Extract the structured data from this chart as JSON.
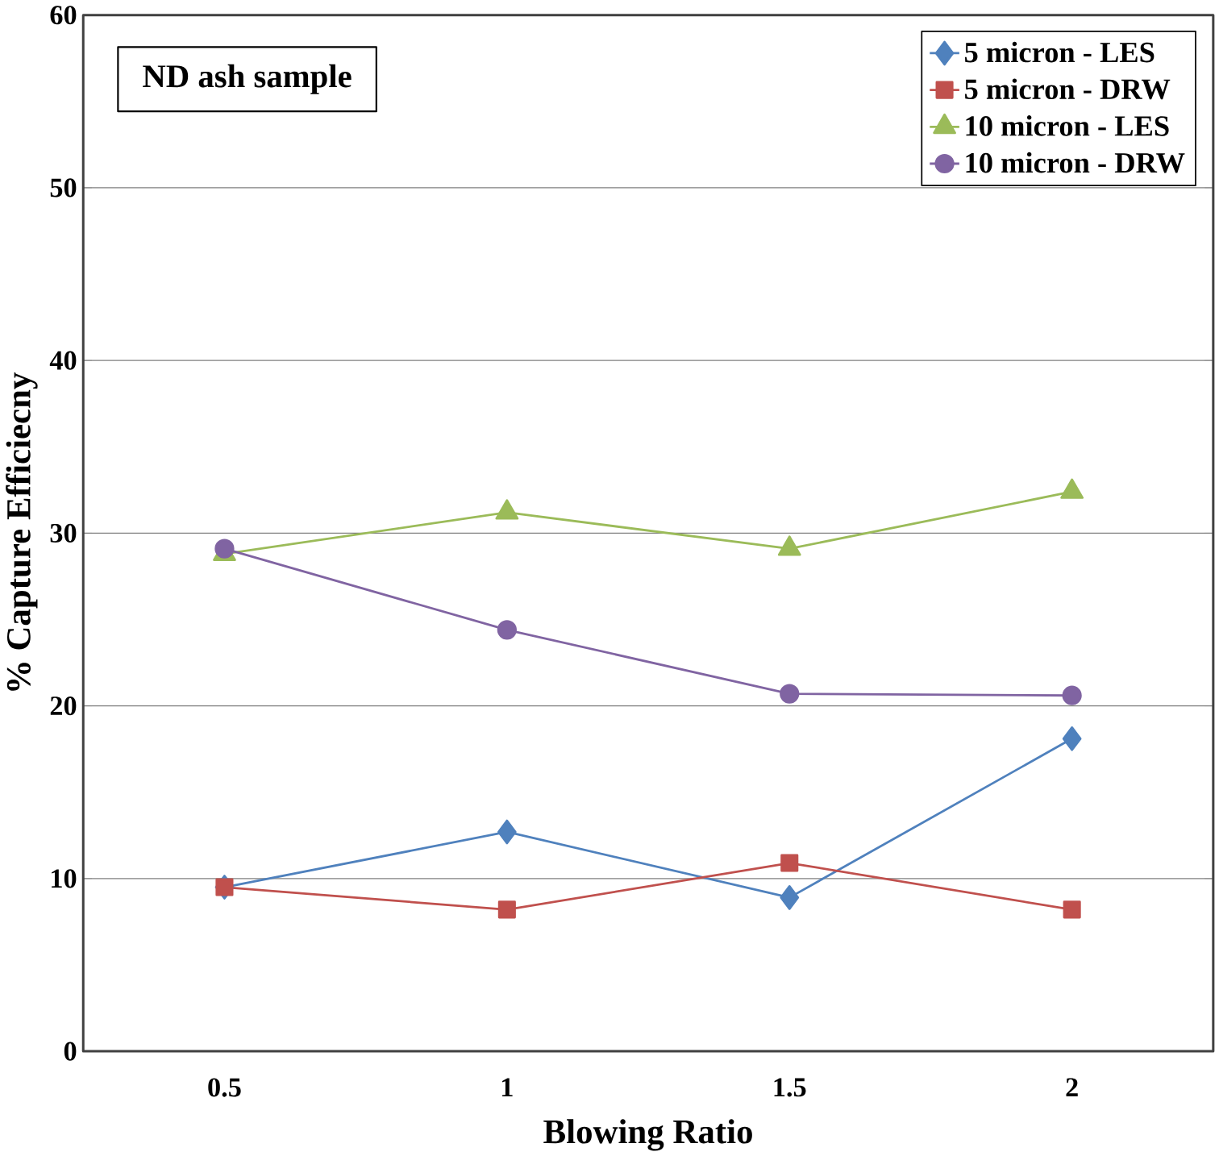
{
  "chart_data": {
    "type": "line",
    "xlabel": "Blowing Ratio",
    "ylabel": "% Capture Efficiecny",
    "annotations": [
      "ND ash sample"
    ],
    "categories": [
      "0.5",
      "1",
      "1.5",
      "2"
    ],
    "series": [
      {
        "name": "5 micron - LES",
        "color": "#4f81bd",
        "marker": "diamond",
        "values": [
          9.5,
          12.7,
          8.9,
          18.1
        ]
      },
      {
        "name": "5 micron - DRW",
        "color": "#c0504d",
        "marker": "square",
        "values": [
          9.5,
          8.2,
          10.9,
          8.2
        ]
      },
      {
        "name": "10 micron - LES",
        "color": "#9bbb59",
        "marker": "triangle",
        "values": [
          28.8,
          31.2,
          29.1,
          32.4
        ]
      },
      {
        "name": "10 micron - DRW",
        "color": "#8064a2",
        "marker": "circle",
        "values": [
          29.1,
          24.4,
          20.7,
          20.6
        ]
      }
    ],
    "ylim": [
      0,
      60
    ],
    "yticks": [
      0,
      10,
      20,
      30,
      40,
      50,
      60
    ],
    "grid": "y",
    "legend": "top right"
  }
}
